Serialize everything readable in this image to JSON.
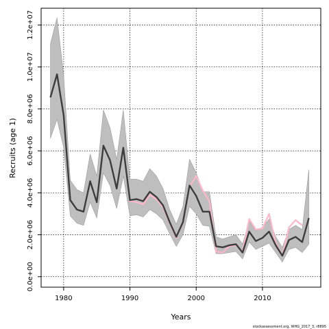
{
  "chart_data": {
    "type": "line",
    "xlabel": "Years",
    "ylabel": "Recruits (age 1)",
    "xlim": [
      1976.6,
      2018.8
    ],
    "ylim": [
      -500000,
      12800000
    ],
    "x_ticks": [
      1980,
      1990,
      2000,
      2010
    ],
    "x_tick_labels": [
      "1980",
      "1990",
      "2000",
      "2010"
    ],
    "y_ticks": [
      0,
      2000000,
      4000000,
      6000000,
      8000000,
      10000000,
      12000000
    ],
    "y_tick_labels": [
      "0.0e+00",
      "2.0e+06",
      "4.0e+06",
      "6.0e+06",
      "8.0e+06",
      "1.0e+07",
      "1.2e+07"
    ],
    "grid": true,
    "grid_style": "dotted",
    "credit": "stockassessment.org, WHG_2017_3, r8895",
    "colors": {
      "band": "#bebebe",
      "band_edge": "#9a9a9a",
      "estimate_line": "#3c3c3c",
      "retro_line": "#ffb6c8"
    },
    "years": [
      1978,
      1979,
      1980,
      1981,
      1982,
      1983,
      1984,
      1985,
      1986,
      1987,
      1988,
      1989,
      1990,
      1991,
      1992,
      1993,
      1994,
      1995,
      1996,
      1997,
      1998,
      1999,
      2000,
      2001,
      2002,
      2003,
      2004,
      2005,
      2006,
      2007,
      2008,
      2009,
      2010,
      2011,
      2012,
      2013,
      2014,
      2015,
      2016,
      2017
    ],
    "series": [
      {
        "role": "estimate",
        "values": [
          8550000,
          9650000,
          7700000,
          3650000,
          3200000,
          3100000,
          4550000,
          3550000,
          6250000,
          5550000,
          4200000,
          6150000,
          3650000,
          3700000,
          3600000,
          4050000,
          3800000,
          3400000,
          2600000,
          1900000,
          2600000,
          4350000,
          3850000,
          3100000,
          3100000,
          1450000,
          1400000,
          1500000,
          1550000,
          1150000,
          2150000,
          1700000,
          1850000,
          2150000,
          1500000,
          1000000,
          1750000,
          1900000,
          1650000,
          2800000
        ]
      },
      {
        "role": "upper",
        "values": [
          11100000,
          12350000,
          9600000,
          4600000,
          4150000,
          4000000,
          5850000,
          4800000,
          7950000,
          7100000,
          5600000,
          7950000,
          4650000,
          4650000,
          4550000,
          5150000,
          4800000,
          4200000,
          3200000,
          2500000,
          3350000,
          5600000,
          4950000,
          4050000,
          4050000,
          1900000,
          1800000,
          1900000,
          2000000,
          1550000,
          2650000,
          2200000,
          2350000,
          2750000,
          1900000,
          1400000,
          2250000,
          2450000,
          2250000,
          5100000
        ]
      },
      {
        "role": "lower",
        "values": [
          6600000,
          7500000,
          6150000,
          2900000,
          2550000,
          2450000,
          3550000,
          2800000,
          4950000,
          4350000,
          3250000,
          4800000,
          2900000,
          2950000,
          2850000,
          3200000,
          3000000,
          2700000,
          2050000,
          1450000,
          2000000,
          3350000,
          3000000,
          2450000,
          2400000,
          1100000,
          1100000,
          1150000,
          1200000,
          850000,
          1650000,
          1300000,
          1450000,
          1600000,
          1150000,
          700000,
          1300000,
          1400000,
          1150000,
          1550000
        ]
      },
      {
        "role": "retrospective",
        "values": [
          null,
          null,
          null,
          null,
          null,
          null,
          null,
          null,
          null,
          null,
          null,
          null,
          3600000,
          3550000,
          3450000,
          3900000,
          3700000,
          3300000,
          2550000,
          1850000,
          2600000,
          4300000,
          4800000,
          4100000,
          3600000,
          1200000,
          1150000,
          1450000,
          1500000,
          1200000,
          2750000,
          2250000,
          2300000,
          3000000,
          1600000,
          1000000,
          2350000,
          2700000,
          2450000,
          null
        ]
      }
    ]
  }
}
